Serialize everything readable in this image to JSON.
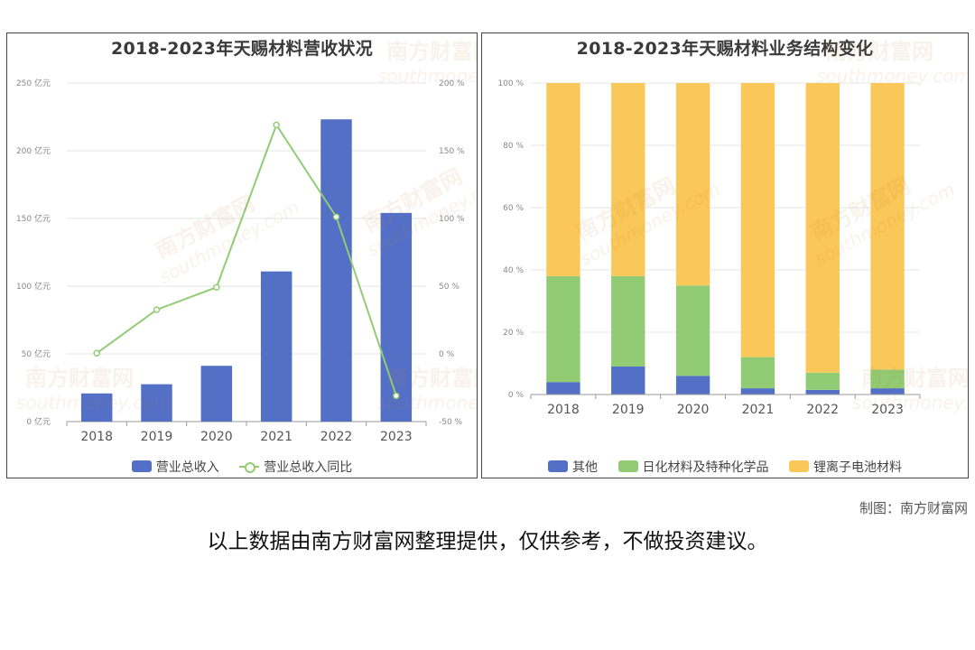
{
  "chart_data": [
    {
      "type": "bar",
      "title": "2018-2023年天赐材料营收状况",
      "categories": [
        "2018",
        "2019",
        "2020",
        "2021",
        "2022",
        "2023"
      ],
      "series": [
        {
          "name": "营业总收入",
          "type": "bar",
          "axis": "left",
          "values": [
            20.8,
            27.6,
            41.2,
            110.9,
            223.2,
            154.1
          ]
        },
        {
          "name": "营业总收入同比",
          "type": "line",
          "axis": "right",
          "values": [
            0.5,
            32.6,
            49.2,
            169.1,
            101.2,
            -30.9
          ]
        }
      ],
      "left_axis": {
        "ylim": [
          0,
          250
        ],
        "ticks": [
          0,
          50,
          100,
          150,
          200,
          250
        ],
        "unit": "亿元"
      },
      "right_axis": {
        "ylim": [
          -50,
          200
        ],
        "ticks": [
          -50,
          0,
          50,
          100,
          150,
          200
        ],
        "unit": "%"
      },
      "legend": "bottom-center",
      "grid": true
    },
    {
      "type": "bar",
      "stacked": true,
      "title": "2018-2023年天赐材料业务结构变化",
      "categories": [
        "2018",
        "2019",
        "2020",
        "2021",
        "2022",
        "2023"
      ],
      "series": [
        {
          "name": "其他",
          "values": [
            4,
            9,
            6,
            2,
            1.5,
            2
          ]
        },
        {
          "name": "日化材料及特种化学品",
          "values": [
            34,
            29,
            29,
            10,
            5.5,
            6
          ]
        },
        {
          "name": "锂离子电池材料",
          "values": [
            62,
            62,
            65,
            88,
            93,
            92
          ]
        }
      ],
      "ylim": [
        0,
        100
      ],
      "ticks": [
        0,
        20,
        40,
        60,
        80,
        100
      ],
      "unit": "%",
      "legend": "bottom-center",
      "grid": true
    }
  ],
  "colors": {
    "blue": "#5470c6",
    "green": "#91cc75",
    "yellow": "#fac858",
    "grid": "#e6e6e6",
    "axis": "#999999"
  },
  "watermark": {
    "cn": "南方财富网",
    "en": "southmoney.com"
  },
  "footer": {
    "credit": "制图：南方财富网",
    "disclaimer": "以上数据由南方财富网整理提供，仅供参考，不做投资建议。"
  }
}
